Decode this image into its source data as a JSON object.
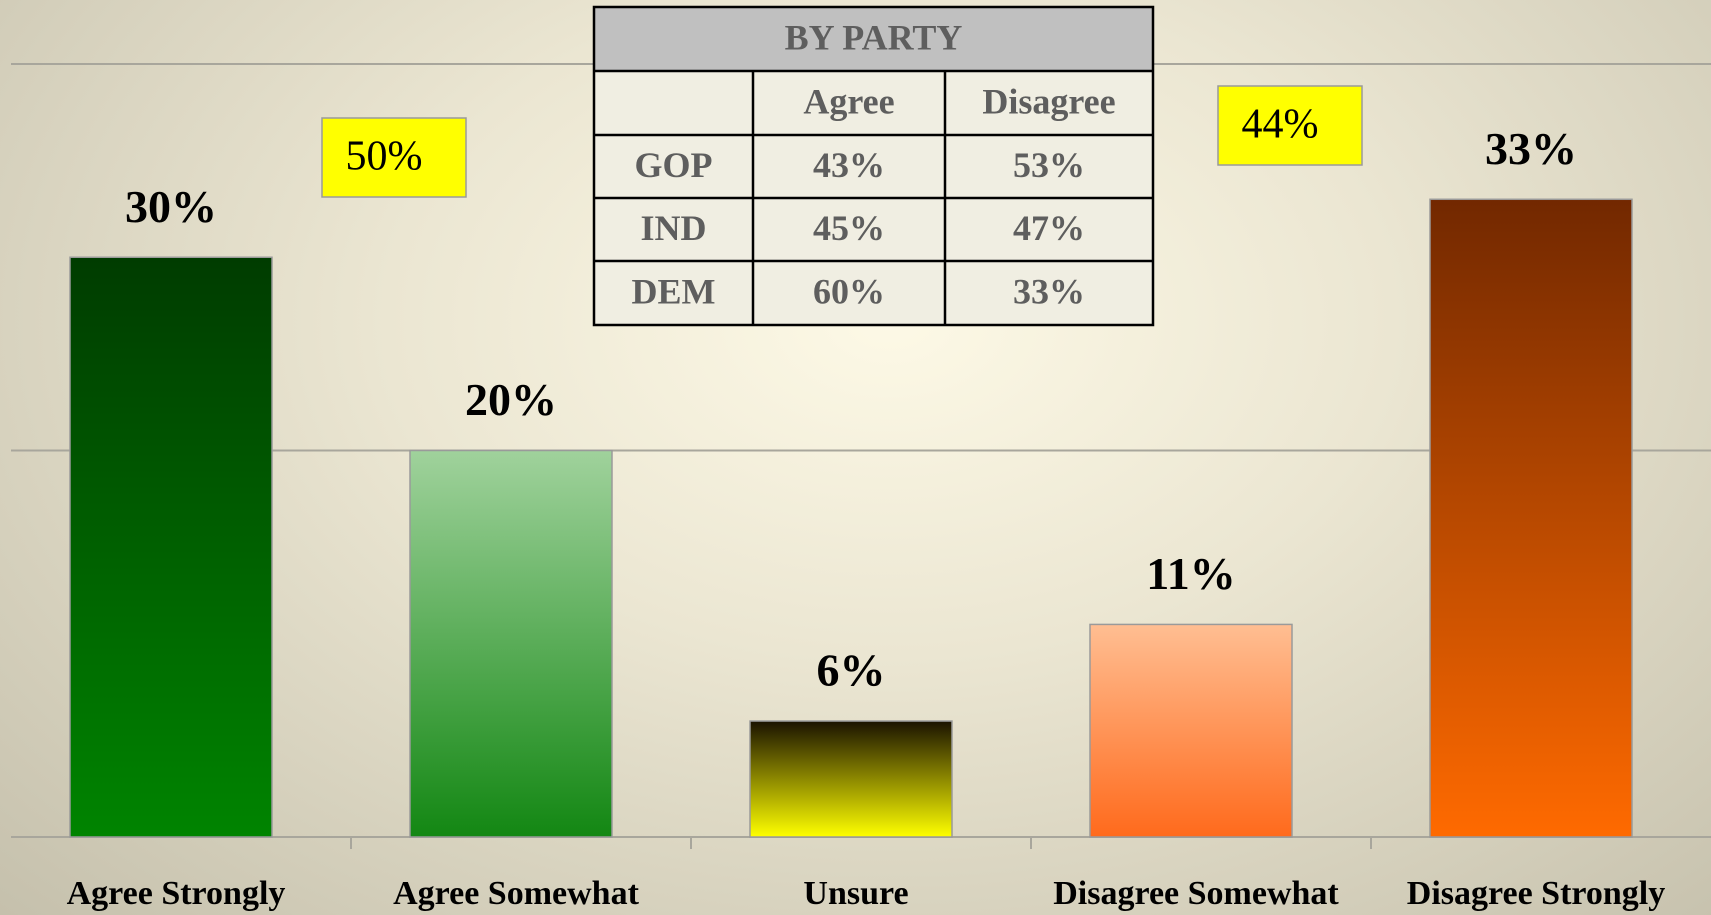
{
  "chart_data": {
    "type": "bar",
    "categories": [
      "Agree Strongly",
      "Agree Somewhat",
      "Unsure",
      "Disagree Somewhat",
      "Disagree Strongly"
    ],
    "values": [
      30,
      20,
      6,
      11,
      33
    ],
    "value_labels": [
      "30%",
      "20%",
      "6%",
      "11%",
      "33%"
    ],
    "colors": [
      [
        "#003c00",
        "#008400"
      ],
      [
        "#a0d29c",
        "#138713"
      ],
      [
        "#1a1200",
        "#ffff00"
      ],
      [
        "#ffbe92",
        "#ff6a1c"
      ],
      [
        "#722800",
        "#ff6a00"
      ]
    ],
    "ylim": [
      0,
      40
    ],
    "yticks": [
      0,
      20,
      40
    ],
    "grid": true,
    "annotations": [
      "50%",
      "44%"
    ]
  },
  "table": {
    "title": "BY PARTY",
    "columns": [
      "Agree",
      "Disagree"
    ],
    "rows": [
      [
        "GOP",
        "43%",
        "53%"
      ],
      [
        "IND",
        "45%",
        "47%"
      ],
      [
        "DEM",
        "60%",
        "33%"
      ]
    ]
  }
}
